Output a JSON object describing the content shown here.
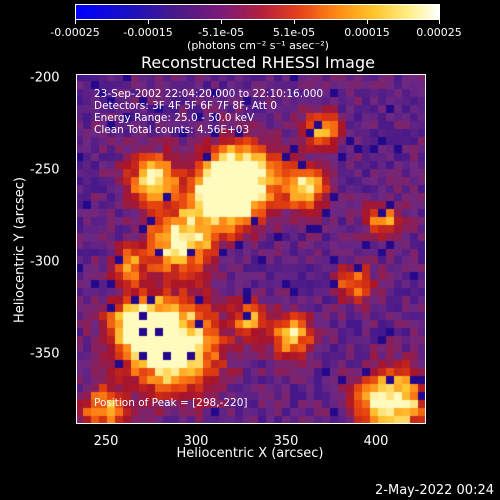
{
  "colorbar": {
    "labels": [
      "-0.00025",
      "-0.00015",
      "-5.1e-05",
      "5.1e-05",
      "0.00015",
      "0.00025"
    ],
    "units": "(photons cm⁻² s⁻¹ asec⁻²)"
  },
  "title": "Reconstructed RHESSI Image",
  "annotations": {
    "time": "23-Sep-2002 22:04:20.000 to 22:10:16.000",
    "detectors": "Detectors: 3F 4F 5F 6F 7F 8F, Att 0",
    "energy": "Energy Range: 25.0 - 50.0 keV",
    "clean": "Clean     Total counts: 4.56E+03",
    "peak": "Position of Peak = [298,-220]"
  },
  "axes": {
    "xlabel": "Heliocentric X (arcsec)",
    "ylabel": "Heliocentric Y (arcsec)",
    "xticks": [
      "250",
      "300",
      "350",
      "400"
    ],
    "yticks": [
      "-200",
      "-250",
      "-300",
      "-350"
    ]
  },
  "timestamp": "2-May-2022 00:24",
  "colors": {
    "background": "#000000",
    "frame": "#ffffff"
  }
}
